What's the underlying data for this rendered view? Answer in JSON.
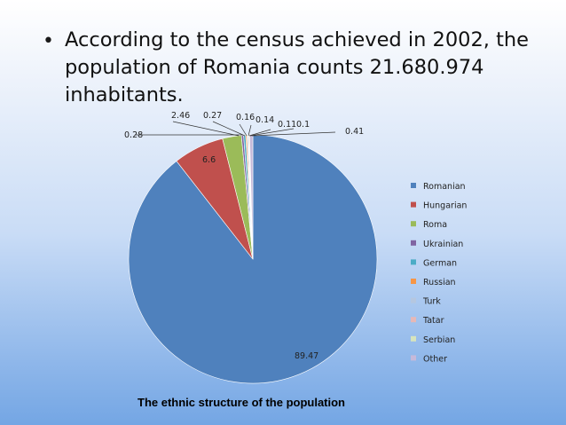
{
  "slide": {
    "bullet": "•",
    "text": "According to the census achieved in 2002, the population of Romania counts 21.680.974 inhabitants.",
    "caption": "The ethnic structure of the population"
  },
  "chart_data": {
    "type": "pie",
    "title": "",
    "categories": [
      "Romanian",
      "Hungarian",
      "Roma",
      "Ukrainian",
      "German",
      "Russian",
      "Turk",
      "Tatar",
      "Serbian",
      "Other"
    ],
    "values": [
      89.47,
      6.6,
      2.46,
      0.28,
      0.27,
      0.16,
      0.14,
      0.11,
      0.1,
      0.41
    ],
    "colors": [
      "#4f81bd",
      "#c0504d",
      "#9bbb59",
      "#8064a2",
      "#4bacc6",
      "#f79646",
      "#b5c7e0",
      "#e6b8b7",
      "#d7e4bd",
      "#c6b9d9"
    ],
    "legend_position": "right"
  }
}
